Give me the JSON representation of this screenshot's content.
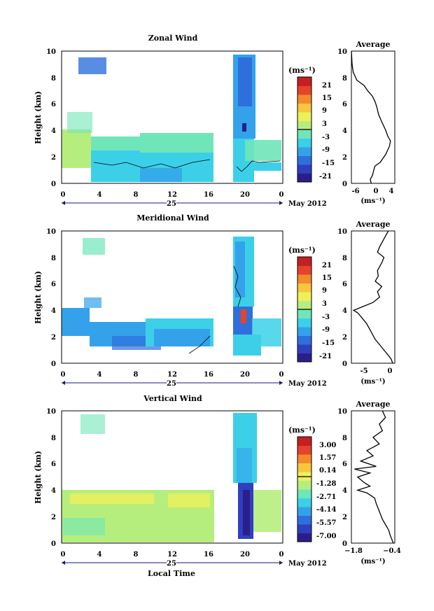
{
  "colors": {
    "colormap": [
      "#2a1f8a",
      "#2e3fbf",
      "#2f6fdc",
      "#33a2ea",
      "#3cd0e8",
      "#6fe6b9",
      "#b6ee7e",
      "#eef05a",
      "#f8c63c",
      "#f58a2c",
      "#e5432a",
      "#c41f22"
    ],
    "contour": "#000000",
    "timeline": "#1a1a7a"
  },
  "chart_data": [
    {
      "type": "heatmap",
      "title": "Zonal Wind",
      "ylabel": "Height (km)",
      "xticks": [
        "0",
        "4",
        "8",
        "12",
        "16",
        "20",
        "0"
      ],
      "yticks": [
        "0",
        "2",
        "4",
        "6",
        "8",
        "10"
      ],
      "ylim": [
        0,
        10
      ],
      "date_mid": "25",
      "date_label": "May 2012",
      "colorbar": {
        "unit": "(ms⁻¹)",
        "ticks": [
          "21",
          "15",
          "9",
          "3",
          "-3",
          "-9",
          "-15",
          "-21"
        ],
        "range": [
          -24,
          24
        ],
        "zero_line": 0
      },
      "average": {
        "title": "Average",
        "xticks": [
          "-6",
          "0",
          "4"
        ],
        "xlabel": "(ms⁻¹)",
        "xlim": [
          -7,
          5
        ],
        "yticks": [
          "0",
          "2",
          "4",
          "6",
          "8",
          "10"
        ],
        "profile": [
          [
            -1.5,
            0
          ],
          [
            -1.8,
            0.3
          ],
          [
            -1.2,
            0.6
          ],
          [
            -0.8,
            1.0
          ],
          [
            -0.5,
            1.3
          ],
          [
            1.0,
            1.6
          ],
          [
            2.5,
            2.2
          ],
          [
            3.5,
            2.8
          ],
          [
            3.8,
            3.2
          ],
          [
            3.0,
            3.6
          ],
          [
            2.5,
            4.0
          ],
          [
            1.5,
            4.6
          ],
          [
            0.5,
            5.2
          ],
          [
            0.0,
            5.8
          ],
          [
            -0.5,
            6.2
          ],
          [
            -1.2,
            6.6
          ],
          [
            -2.5,
            7.0
          ],
          [
            -3.5,
            7.4
          ],
          [
            -5.5,
            7.8
          ],
          [
            -6.5,
            8.4
          ],
          [
            -6.8,
            9.0
          ],
          [
            -7.0,
            10.0
          ]
        ]
      }
    },
    {
      "type": "heatmap",
      "title": "Meridional Wind",
      "ylabel": "Height (km)",
      "xticks": [
        "0",
        "4",
        "8",
        "12",
        "16",
        "20",
        "0"
      ],
      "yticks": [
        "0",
        "2",
        "4",
        "6",
        "8",
        "10"
      ],
      "ylim": [
        0,
        10
      ],
      "date_mid": "25",
      "date_label": "May 2012",
      "colorbar": {
        "unit": "(ms⁻¹)",
        "ticks": [
          "21",
          "15",
          "9",
          "3",
          "-3",
          "-9",
          "-15",
          "-21"
        ],
        "range": [
          -24,
          24
        ],
        "zero_line": 0
      },
      "average": {
        "title": "Average",
        "xticks": [
          "-5",
          "0"
        ],
        "xlabel": "(ms⁻¹)",
        "xlim": [
          -9,
          1
        ],
        "yticks": [
          "0",
          "2",
          "4",
          "6",
          "8",
          "10"
        ],
        "profile": [
          [
            0.5,
            0
          ],
          [
            0.2,
            0.3
          ],
          [
            -0.5,
            0.6
          ],
          [
            -1.5,
            1.0
          ],
          [
            -2.5,
            1.4
          ],
          [
            -3.5,
            1.8
          ],
          [
            -4.5,
            2.4
          ],
          [
            -5.5,
            3.0
          ],
          [
            -6.5,
            3.4
          ],
          [
            -7.5,
            3.8
          ],
          [
            -8.5,
            4.0
          ],
          [
            -7.0,
            4.2
          ],
          [
            -4.0,
            4.6
          ],
          [
            -2.5,
            5.0
          ],
          [
            -3.0,
            5.4
          ],
          [
            -2.0,
            5.8
          ],
          [
            -3.5,
            6.2
          ],
          [
            -2.8,
            6.6
          ],
          [
            -3.0,
            7.0
          ],
          [
            -2.0,
            7.6
          ],
          [
            -1.5,
            8.0
          ],
          [
            -3.0,
            8.4
          ],
          [
            -2.5,
            8.8
          ],
          [
            -1.5,
            9.4
          ],
          [
            -0.5,
            10.0
          ]
        ]
      }
    },
    {
      "type": "heatmap",
      "title": "Vertical Wind",
      "ylabel": "Height (km)",
      "xlabel": "Local Time",
      "xticks": [
        "0",
        "4",
        "8",
        "12",
        "16",
        "20",
        "0"
      ],
      "yticks": [
        "0",
        "2",
        "4",
        "6",
        "8",
        "10"
      ],
      "ylim": [
        0,
        10
      ],
      "date_mid": "25",
      "date_label": "May 2012",
      "colorbar": {
        "unit": "(ms⁻¹)",
        "ticks": [
          "3.00",
          "1.57",
          "0.14",
          "-1.28",
          "-2.71",
          "-4.14",
          "-5.57",
          "-7.00"
        ],
        "range": [
          -7.7,
          3.7
        ],
        "zero_line": 0.14
      },
      "average": {
        "title": "Average",
        "xticks": [
          "−1.8",
          "−0.4"
        ],
        "xlabel": "(ms⁻¹)",
        "xlim": [
          -1.8,
          -0.4
        ],
        "yticks": [
          "0",
          "2",
          "4",
          "6",
          "8",
          "10"
        ],
        "profile": [
          [
            -0.45,
            0
          ],
          [
            -0.5,
            0.3
          ],
          [
            -0.55,
            0.6
          ],
          [
            -0.6,
            1.0
          ],
          [
            -0.7,
            1.4
          ],
          [
            -0.8,
            1.8
          ],
          [
            -0.9,
            2.4
          ],
          [
            -1.0,
            3.0
          ],
          [
            -1.05,
            3.4
          ],
          [
            -1.3,
            3.8
          ],
          [
            -1.6,
            4.0
          ],
          [
            -1.2,
            4.3
          ],
          [
            -1.4,
            4.6
          ],
          [
            -1.6,
            5.0
          ],
          [
            -1.2,
            5.3
          ],
          [
            -1.7,
            5.6
          ],
          [
            -1.0,
            5.8
          ],
          [
            -1.5,
            6.2
          ],
          [
            -1.1,
            6.6
          ],
          [
            -1.3,
            7.0
          ],
          [
            -0.9,
            7.5
          ],
          [
            -1.1,
            8.0
          ],
          [
            -0.8,
            8.5
          ],
          [
            -0.9,
            9.0
          ],
          [
            -0.7,
            9.5
          ],
          [
            -0.8,
            10.0
          ]
        ]
      }
    }
  ]
}
